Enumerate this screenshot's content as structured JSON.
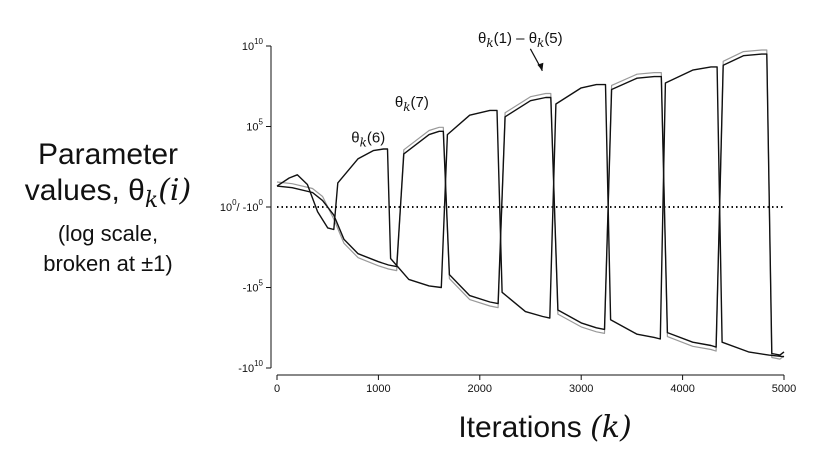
{
  "chart_data": {
    "type": "line",
    "xlabel_text": "Iterations ",
    "xlabel_var": "(k)",
    "ylabel_lines": [
      "Parameter",
      "values, ",
      "(log scale,",
      "broken at ±1)"
    ],
    "ylabel_theta": "θ",
    "ylabel_sub": "k",
    "ylabel_arg": "(i)",
    "xlim": [
      0,
      5000
    ],
    "ylim": [
      -10,
      10
    ],
    "y_scale": "symmetric-log, broken at ±1",
    "x_ticks": [
      0,
      1000,
      2000,
      3000,
      4000,
      5000
    ],
    "x_tick_labels": [
      "0",
      "1000",
      "2000",
      "3000",
      "4000",
      "5000"
    ],
    "y_ticks": [
      {
        "value": 10,
        "base": "10",
        "exp": "10"
      },
      {
        "value": 5,
        "base": "10",
        "exp": "5"
      },
      {
        "value": 0,
        "base": "10",
        "exp": "0",
        "suffix": "/ -10",
        "suffix_exp": "0"
      },
      {
        "value": -5,
        "base": "-10",
        "exp": "5"
      },
      {
        "value": -10,
        "base": "-10",
        "exp": "10"
      }
    ],
    "reference_line": {
      "y": 0,
      "style": "dotted"
    },
    "annotations": [
      {
        "theta": "θ",
        "sub": "k",
        "arg": "(6)",
        "x": 900,
        "y": 4.0
      },
      {
        "theta": "θ",
        "sub": "k",
        "arg": "(7)",
        "x": 1330,
        "y": 6.2
      },
      {
        "theta": "θ",
        "sub": "k",
        "arg": "(1) – ",
        "theta2": "θ",
        "sub2": "k",
        "arg2": "(5)",
        "x": 2400,
        "y": 10.2
      }
    ],
    "series": [
      {
        "style": "black",
        "offset": 0,
        "points": [
          [
            0,
            1.3
          ],
          [
            150,
            1.2
          ],
          [
            350,
            0.9
          ],
          [
            450,
            0.4
          ],
          [
            560,
            -0.5
          ],
          [
            660,
            -2.0
          ],
          [
            800,
            -2.9
          ],
          [
            1000,
            -3.4
          ],
          [
            1100,
            -3.6
          ],
          [
            1180,
            -3.7
          ],
          [
            1250,
            3.3
          ],
          [
            1500,
            4.5
          ],
          [
            1600,
            4.7
          ],
          [
            1640,
            4.7
          ],
          [
            1700,
            -4.2
          ],
          [
            1900,
            -5.5
          ],
          [
            2100,
            -5.9
          ],
          [
            2180,
            -6.0
          ],
          [
            2250,
            5.6
          ],
          [
            2500,
            6.6
          ],
          [
            2650,
            6.8
          ],
          [
            2700,
            6.8
          ],
          [
            2770,
            -6.4
          ],
          [
            3000,
            -7.2
          ],
          [
            3150,
            -7.5
          ],
          [
            3230,
            -7.6
          ],
          [
            3300,
            7.3
          ],
          [
            3550,
            8.0
          ],
          [
            3720,
            8.1
          ],
          [
            3790,
            8.1
          ],
          [
            3850,
            -7.8
          ],
          [
            4100,
            -8.4
          ],
          [
            4280,
            -8.6
          ],
          [
            4330,
            -8.7
          ],
          [
            4400,
            8.8
          ],
          [
            4600,
            9.4
          ],
          [
            4780,
            9.5
          ],
          [
            4830,
            9.5
          ],
          [
            4880,
            -9.1
          ],
          [
            4960,
            -9.2
          ],
          [
            5000,
            -9.0
          ]
        ]
      },
      {
        "style": "gray",
        "offset": 0.25,
        "points": [
          [
            0,
            1.3
          ],
          [
            150,
            1.2
          ],
          [
            350,
            0.9
          ],
          [
            450,
            0.4
          ],
          [
            560,
            -0.5
          ],
          [
            660,
            -2.0
          ],
          [
            800,
            -2.9
          ],
          [
            1000,
            -3.4
          ],
          [
            1100,
            -3.6
          ],
          [
            1180,
            -3.7
          ],
          [
            1250,
            3.3
          ],
          [
            1500,
            4.5
          ],
          [
            1600,
            4.7
          ],
          [
            1640,
            4.7
          ],
          [
            1700,
            -4.2
          ],
          [
            1900,
            -5.5
          ],
          [
            2100,
            -5.9
          ],
          [
            2180,
            -6.0
          ],
          [
            2250,
            5.6
          ],
          [
            2500,
            6.6
          ],
          [
            2650,
            6.8
          ],
          [
            2700,
            6.8
          ],
          [
            2770,
            -6.4
          ],
          [
            3000,
            -7.2
          ],
          [
            3150,
            -7.5
          ],
          [
            3230,
            -7.6
          ],
          [
            3300,
            7.3
          ],
          [
            3550,
            8.0
          ],
          [
            3720,
            8.1
          ],
          [
            3790,
            8.1
          ],
          [
            3850,
            -7.8
          ],
          [
            4100,
            -8.4
          ],
          [
            4280,
            -8.6
          ],
          [
            4330,
            -8.7
          ],
          [
            4400,
            8.8
          ],
          [
            4600,
            9.4
          ],
          [
            4780,
            9.5
          ],
          [
            4830,
            9.5
          ],
          [
            4880,
            -9.1
          ],
          [
            4960,
            -9.2
          ],
          [
            5000,
            -9.0
          ]
        ]
      },
      {
        "style": "black",
        "offset": 0,
        "points": [
          [
            0,
            1.3
          ],
          [
            120,
            1.8
          ],
          [
            200,
            2.0
          ],
          [
            300,
            1.4
          ],
          [
            400,
            -0.3
          ],
          [
            500,
            -1.3
          ],
          [
            560,
            -1.4
          ],
          [
            600,
            1.5
          ],
          [
            800,
            3.0
          ],
          [
            950,
            3.5
          ],
          [
            1050,
            3.6
          ],
          [
            1090,
            3.6
          ],
          [
            1120,
            -3.2
          ],
          [
            1300,
            -4.5
          ],
          [
            1500,
            -4.9
          ],
          [
            1620,
            -5.0
          ],
          [
            1680,
            4.5
          ],
          [
            1900,
            5.7
          ],
          [
            2100,
            6.0
          ],
          [
            2170,
            6.0
          ],
          [
            2220,
            -5.3
          ],
          [
            2450,
            -6.5
          ],
          [
            2620,
            -6.8
          ],
          [
            2690,
            -6.9
          ],
          [
            2750,
            6.4
          ],
          [
            3000,
            7.4
          ],
          [
            3150,
            7.6
          ],
          [
            3240,
            7.6
          ],
          [
            3290,
            -7.0
          ],
          [
            3550,
            -7.9
          ],
          [
            3720,
            -8.1
          ],
          [
            3780,
            -8.2
          ],
          [
            3830,
            7.7
          ],
          [
            4100,
            8.5
          ],
          [
            4280,
            8.7
          ],
          [
            4340,
            8.7
          ],
          [
            4390,
            -8.4
          ],
          [
            4650,
            -9.0
          ],
          [
            4850,
            -9.2
          ],
          [
            5000,
            -9.3
          ]
        ]
      }
    ]
  }
}
